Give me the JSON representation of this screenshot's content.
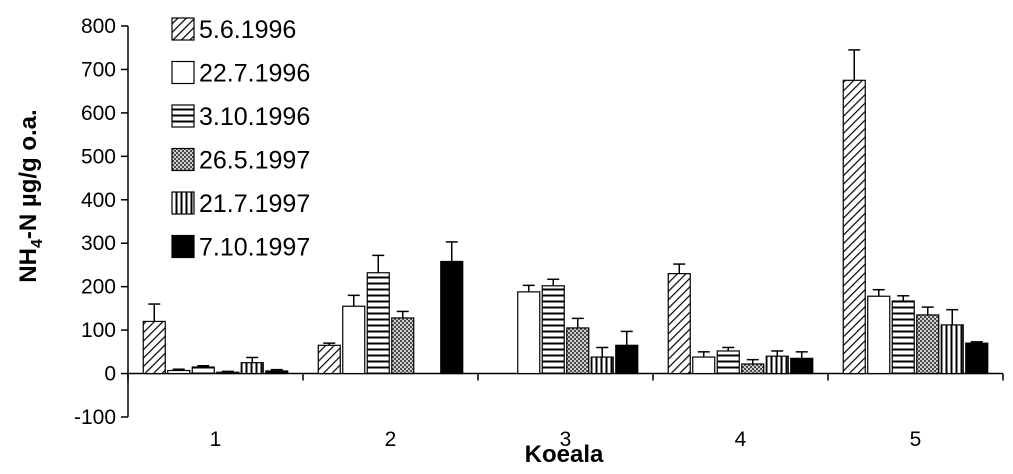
{
  "chart_data": {
    "type": "bar",
    "xlabel": "Koeala",
    "ylabel": {
      "prefix": "NH",
      "subscript": "4",
      "suffix": "-N µg/g o.a."
    },
    "ylim": [
      -100,
      800
    ],
    "yticks": [
      -100,
      0,
      100,
      200,
      300,
      400,
      500,
      600,
      700,
      800
    ],
    "categories": [
      "1",
      "2",
      "3",
      "4",
      "5"
    ],
    "legend_position": "top-left",
    "series": [
      {
        "name": "5.6.1996",
        "pattern": "diagonal",
        "values": [
          120,
          65,
          0,
          230,
          675
        ],
        "errors": [
          40,
          5,
          0,
          22,
          70
        ]
      },
      {
        "name": "22.7.1996",
        "pattern": "white",
        "values": [
          7,
          155,
          188,
          38,
          178
        ],
        "errors": [
          3,
          25,
          15,
          12,
          15
        ]
      },
      {
        "name": "3.10.1996",
        "pattern": "horizontal",
        "values": [
          15,
          232,
          202,
          52,
          167
        ],
        "errors": [
          3,
          40,
          15,
          8,
          12
        ]
      },
      {
        "name": "26.5.1997",
        "pattern": "crosshatch",
        "values": [
          3,
          128,
          105,
          22,
          135
        ],
        "errors": [
          2,
          15,
          22,
          10,
          18
        ]
      },
      {
        "name": "21.7.1997",
        "pattern": "vertical",
        "values": [
          25,
          0,
          38,
          40,
          112
        ],
        "errors": [
          12,
          0,
          22,
          12,
          35
        ]
      },
      {
        "name": "7.10.1997",
        "pattern": "solid",
        "values": [
          6,
          258,
          65,
          35,
          70
        ],
        "errors": [
          3,
          45,
          32,
          15,
          3
        ]
      }
    ]
  }
}
